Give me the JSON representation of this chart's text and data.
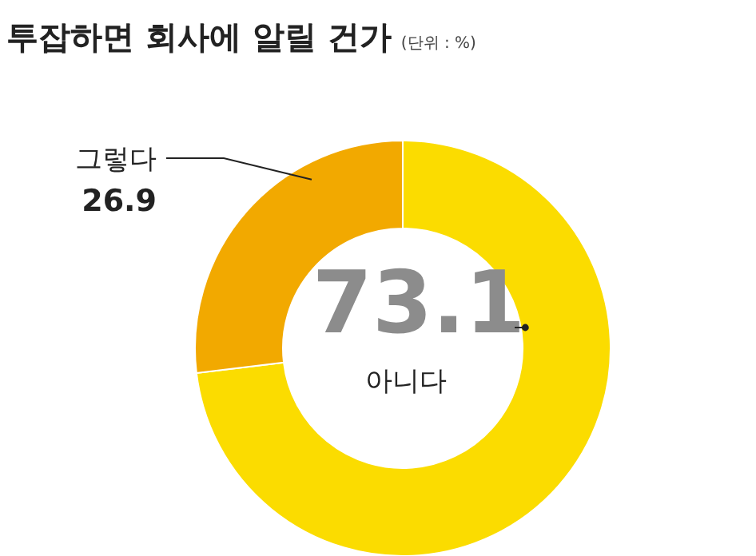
{
  "chart_data": {
    "type": "donut",
    "title": "투잡하면 회사에 알릴 건가",
    "subtitle": "(단위 : %)",
    "categories": [
      "아니다",
      "그렇다"
    ],
    "values": [
      73.1,
      26.9
    ],
    "colors": [
      "#fbdc00",
      "#f2a900"
    ],
    "data_labels": true,
    "legend": false
  }
}
